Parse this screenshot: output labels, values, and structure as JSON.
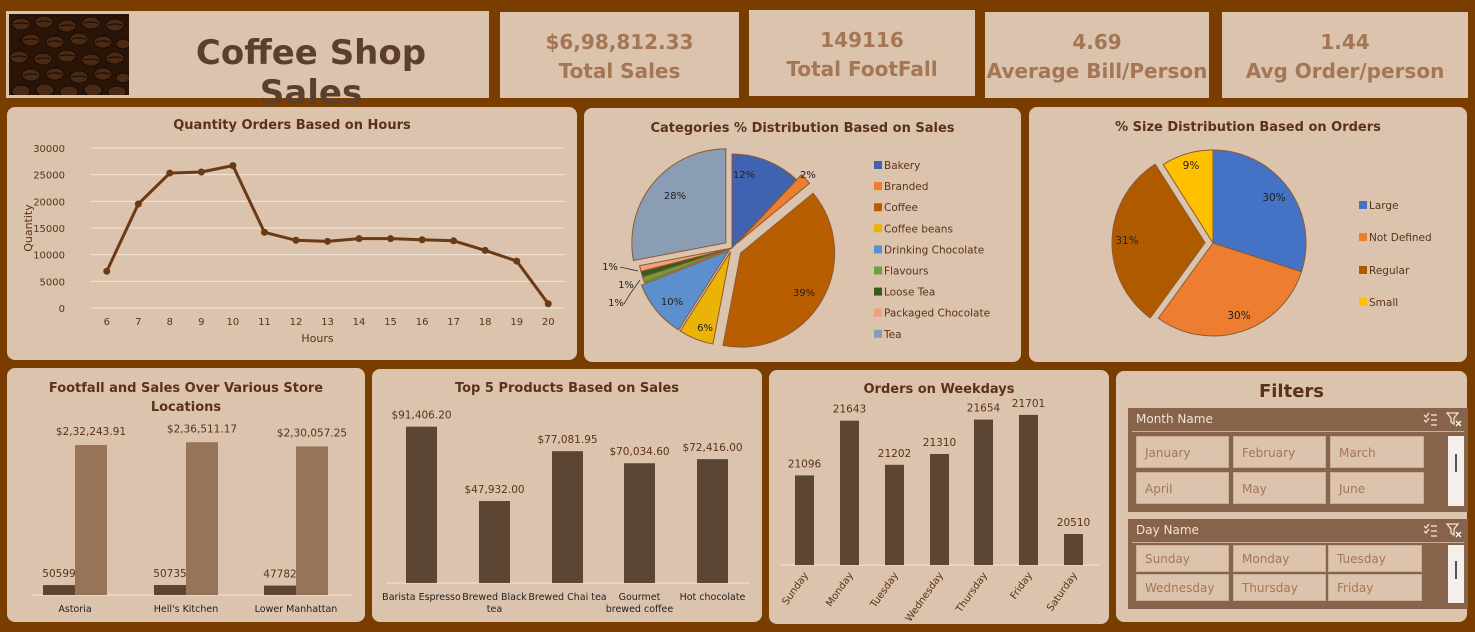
{
  "header": {
    "title": "Coffee Shop Sales"
  },
  "kpis": [
    {
      "value": "$6,98,812.33",
      "label": "Total Sales"
    },
    {
      "value": "149116",
      "label": "Total FootFall"
    },
    {
      "value": "4.69",
      "label": "Average Bill/Person"
    },
    {
      "value": "1.44",
      "label": "Avg Order/person"
    }
  ],
  "colors": {
    "background": "#7a3d00",
    "panel": "#dcc3ae",
    "bar_dark": "#5c4533",
    "bar_light": "#97735a",
    "line": "#6b3a12"
  },
  "filters": {
    "title": "Filters",
    "month": {
      "label": "Month Name",
      "options": [
        "January",
        "February",
        "March",
        "April",
        "May",
        "June"
      ]
    },
    "day": {
      "label": "Day Name",
      "options": [
        "Sunday",
        "Monday",
        "Tuesday",
        "Wednesday",
        "Thursday",
        "Friday"
      ]
    }
  },
  "chart_data": [
    {
      "id": "hours",
      "type": "line",
      "title": "Quantity Orders Based on Hours",
      "xlabel": "Hours",
      "ylabel": "Quantity",
      "x": [
        "6",
        "7",
        "8",
        "9",
        "10",
        "11",
        "12",
        "13",
        "14",
        "15",
        "16",
        "17",
        "18",
        "19",
        "20"
      ],
      "values": [
        6900,
        19500,
        25300,
        25500,
        26700,
        14200,
        12700,
        12500,
        13000,
        13000,
        12800,
        12600,
        10800,
        8800,
        800
      ],
      "ylim": [
        0,
        30000
      ],
      "yticks": [
        "0",
        "5000",
        "10000",
        "15000",
        "20000",
        "25000",
        "30000"
      ],
      "grid": true
    },
    {
      "id": "categories",
      "type": "pie",
      "title": "Categories % Distribution Based on Sales",
      "legend": "right",
      "slices": [
        {
          "name": "Bakery",
          "value": 12,
          "label": "12%",
          "color": "#3f63b1"
        },
        {
          "name": "Branded",
          "value": 2,
          "label": "2%",
          "color": "#ed7d31"
        },
        {
          "name": "Coffee",
          "value": 39,
          "label": "39%",
          "color": "#b85e00"
        },
        {
          "name": "Coffee beans",
          "value": 6,
          "label": "6%",
          "color": "#ebb307"
        },
        {
          "name": "Drinking Chocolate",
          "value": 10,
          "label": "10%",
          "color": "#5b8fcd"
        },
        {
          "name": "Flavours",
          "value": 1,
          "label": "1%",
          "color": "#6f9e3a"
        },
        {
          "name": "Loose Tea",
          "value": 1,
          "label": "1%",
          "color": "#3a5a1e"
        },
        {
          "name": "Packaged Chocolate",
          "value": 1,
          "label": "1%",
          "color": "#f4a07a"
        },
        {
          "name": "Tea",
          "value": 28,
          "label": "28%",
          "color": "#8a9db5"
        }
      ]
    },
    {
      "id": "sizes",
      "type": "pie",
      "title": "% Size Distribution Based on Orders",
      "legend": "right",
      "slices": [
        {
          "name": "Large",
          "value": 30,
          "label": "30%",
          "color": "#4472c4"
        },
        {
          "name": "Not Defined",
          "value": 30,
          "label": "30%",
          "color": "#ed7d31"
        },
        {
          "name": "Regular",
          "value": 31,
          "label": "31%",
          "color": "#b05a00"
        },
        {
          "name": "Small",
          "value": 9,
          "label": "9%",
          "color": "#ffc000"
        }
      ]
    },
    {
      "id": "locations",
      "type": "bar",
      "title": "Footfall and Sales Over Various Store Locations",
      "categories": [
        "Astoria",
        "Hell's Kitchen",
        "Lower Manhattan"
      ],
      "series": [
        {
          "values": [
            50599,
            50735,
            47782
          ],
          "labels": [
            "50599",
            "50735",
            "47782"
          ]
        },
        {
          "values": [
            232243.91,
            236511.17,
            230057.25
          ],
          "labels": [
            "$2,32,243.91",
            "$2,36,511.17",
            "$2,30,057.25"
          ]
        }
      ],
      "ylim": [
        0,
        280000
      ]
    },
    {
      "id": "products",
      "type": "bar",
      "title": "Top 5 Products Based on Sales",
      "categories": [
        "Barista Espresso",
        "Brewed Black tea",
        "Brewed Chai tea",
        "Gourmet brewed coffee",
        "Hot chocolate"
      ],
      "category_lines": [
        [
          "Barista Espresso"
        ],
        [
          "Brewed Black",
          "tea"
        ],
        [
          "Brewed Chai tea"
        ],
        [
          "Gourmet",
          "brewed coffee"
        ],
        [
          "Hot chocolate"
        ]
      ],
      "values": [
        91406.2,
        47932.0,
        77081.95,
        70034.6,
        72416.0
      ],
      "labels": [
        "$91,406.20",
        "$47,932.00",
        "$77,081.95",
        "$70,034.60",
        "$72,416.00"
      ],
      "ylim": [
        0,
        100000
      ]
    },
    {
      "id": "weekdays",
      "type": "bar",
      "title": "Orders on Weekdays",
      "categories": [
        "Sunday",
        "Monday",
        "Tuesday",
        "Wednesday",
        "Thursday",
        "Friday",
        "Saturday"
      ],
      "values": [
        21096,
        21643,
        21202,
        21310,
        21654,
        21701,
        20510
      ],
      "labels": [
        "21096",
        "21643",
        "21202",
        "21310",
        "21654",
        "21701",
        "20510"
      ],
      "ylim": [
        20200,
        21800
      ]
    }
  ]
}
